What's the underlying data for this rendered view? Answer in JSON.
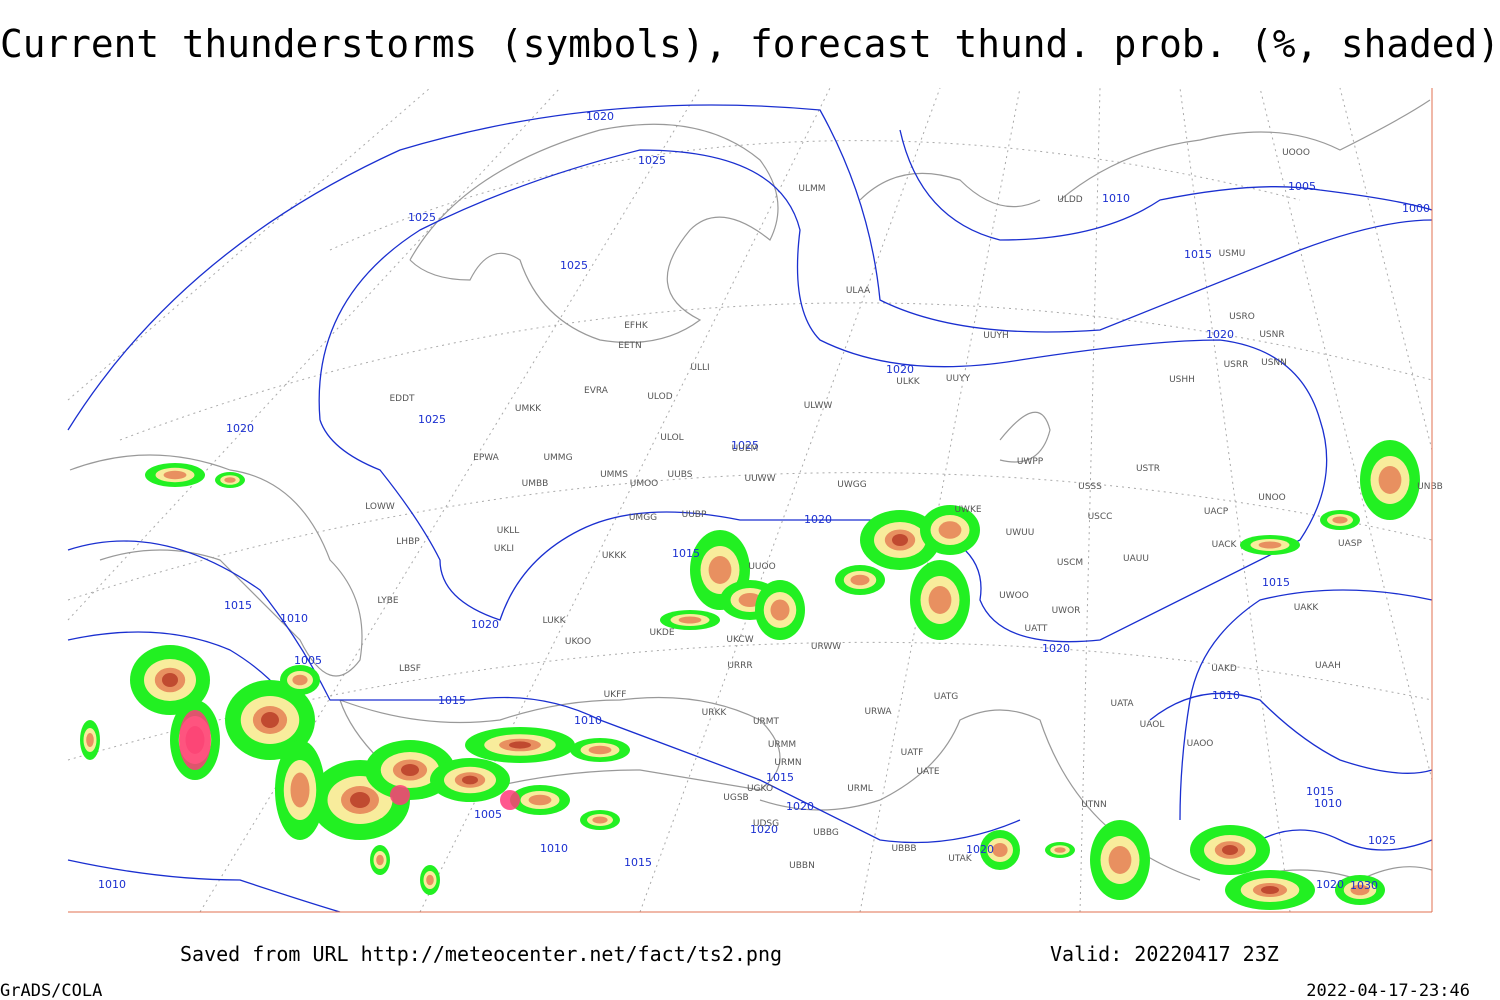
{
  "title": "Current thunderstorms (symbols), forecast thund. prob. (%, shaded)",
  "footer": {
    "source": "Saved from URL http://meteocenter.net/fact/ts2.png",
    "valid": "Valid: 20220417 23Z",
    "software": "GrADS/COLA",
    "timestamp": "2022-04-17-23:46"
  },
  "map": {
    "isobar_labels": [
      "1020",
      "1025",
      "1025",
      "1025",
      "1025",
      "1020",
      "1025",
      "1020",
      "1015",
      "1015",
      "1010",
      "1020",
      "1005",
      "1015",
      "1010",
      "1020",
      "1015",
      "1010",
      "1020",
      "1020",
      "1015",
      "1010",
      "1005",
      "1000",
      "1015",
      "1020",
      "1020",
      "1005",
      "1010",
      "1015",
      "1010",
      "1020",
      "1015",
      "1010",
      "1025",
      "1020",
      "1030"
    ],
    "stations": [
      "ULMM",
      "ULAA",
      "EFHK",
      "EETN",
      "ULLI",
      "EVRA",
      "ULOD",
      "EDDT",
      "UMKK",
      "ULWW",
      "UUEM",
      "ULOL",
      "EPWA",
      "UMMG",
      "UMMS",
      "UUBS",
      "UMOO",
      "UUWW",
      "UMBB",
      "UWGG",
      "LOWW",
      "UKLL",
      "UKLI",
      "LHBP",
      "UMGG",
      "UUBP",
      "UUOO",
      "UKKK",
      "LYBE",
      "LUKK",
      "UKOO",
      "UKDE",
      "UKCW",
      "URWW",
      "URRR",
      "LBSF",
      "UKFF",
      "URKK",
      "URMT",
      "URMM",
      "URMN",
      "URML",
      "UGSB",
      "UGKO",
      "UDSG",
      "UBBG",
      "UBBN",
      "UBBB",
      "UTAK",
      "UATG",
      "URWA",
      "UATF",
      "UATE",
      "UTNN",
      "UWPP",
      "USSS",
      "USTR",
      "USCC",
      "USCM",
      "UAUU",
      "UWOO",
      "UWOR",
      "UATT",
      "UACP",
      "UACK",
      "UNOO",
      "UAKK",
      "UAKD",
      "UATA",
      "UAOL",
      "UAOO",
      "UAAH",
      "UUYY",
      "ULKK",
      "UUYH",
      "ULDD",
      "USRR",
      "USNN",
      "USRO",
      "USNR",
      "USHH",
      "USMU",
      "UOOO",
      "UNBB",
      "UASP",
      "UWKE",
      "UWUU"
    ]
  }
}
